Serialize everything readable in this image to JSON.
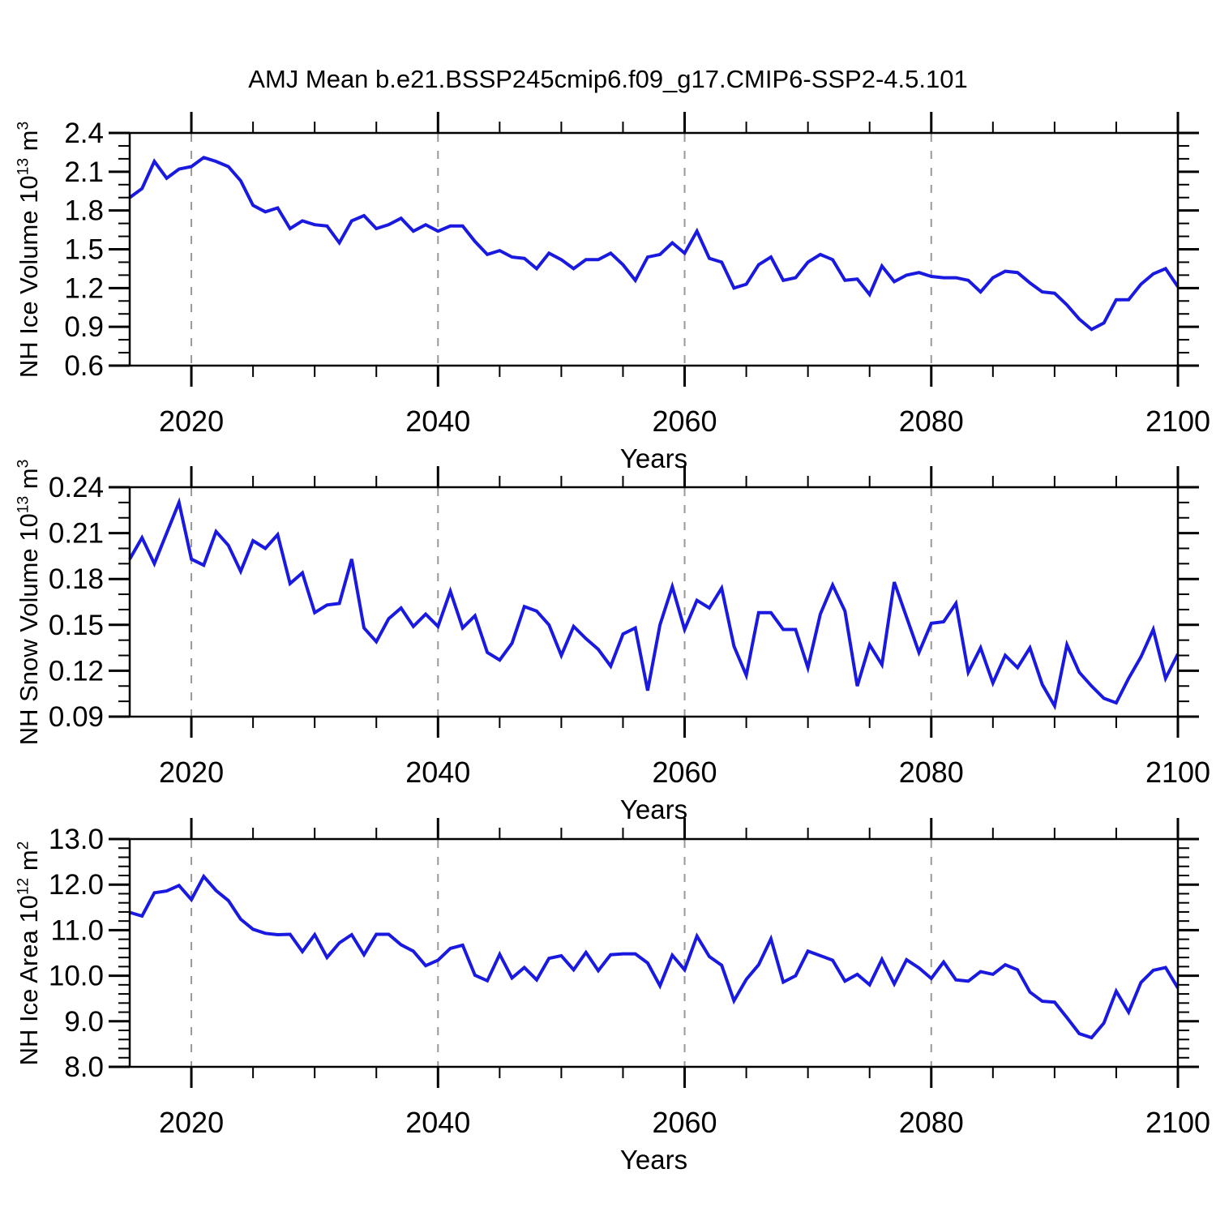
{
  "title": "AMJ Mean b.e21.BSSP245cmip6.f09_g17.CMIP6-SSP2-4.5.101",
  "x_axis": {
    "label": "Years",
    "start": 2015,
    "end": 2100,
    "tick_values": [
      2020,
      2040,
      2060,
      2080,
      2100
    ],
    "tick_labels": [
      "2020",
      "2040",
      "2060",
      "2080",
      "2100"
    ],
    "minor_step": 5,
    "gridline_values": [
      2020,
      2040,
      2060,
      2080
    ]
  },
  "style": {
    "line_color": "#1919e0",
    "grid_color": "#999999",
    "axis_color": "#000000"
  },
  "chart_data": [
    {
      "type": "line",
      "series_name": "nh-ice-volume",
      "ylabel_segments": [
        {
          "text": "NH Ice Volume 10"
        },
        {
          "text": "13",
          "sup": true
        },
        {
          "text": " m"
        },
        {
          "text": "3",
          "sup": true
        }
      ],
      "ylim": [
        0.6,
        2.4
      ],
      "ytick_values": [
        0.6,
        0.9,
        1.2,
        1.5,
        1.8,
        2.1,
        2.4
      ],
      "ytick_labels": [
        "0.6",
        "0.9",
        "1.2",
        "1.5",
        "1.8",
        "2.1",
        "2.4"
      ],
      "yminor_step": 0.1,
      "xlabel": "Years",
      "x_start": 2015,
      "x_step": 1,
      "values": [
        1.9,
        1.97,
        2.18,
        2.05,
        2.12,
        2.14,
        2.21,
        2.18,
        2.14,
        2.03,
        1.84,
        1.79,
        1.82,
        1.66,
        1.72,
        1.69,
        1.68,
        1.55,
        1.72,
        1.76,
        1.66,
        1.69,
        1.74,
        1.64,
        1.69,
        1.64,
        1.68,
        1.68,
        1.56,
        1.46,
        1.49,
        1.44,
        1.43,
        1.35,
        1.47,
        1.42,
        1.35,
        1.42,
        1.42,
        1.47,
        1.38,
        1.26,
        1.44,
        1.46,
        1.55,
        1.47,
        1.64,
        1.43,
        1.4,
        1.2,
        1.23,
        1.38,
        1.44,
        1.26,
        1.28,
        1.4,
        1.46,
        1.42,
        1.26,
        1.27,
        1.15,
        1.37,
        1.25,
        1.3,
        1.32,
        1.29,
        1.28,
        1.28,
        1.26,
        1.17,
        1.28,
        1.33,
        1.32,
        1.24,
        1.17,
        1.16,
        1.07,
        0.96,
        0.88,
        0.93,
        1.11,
        1.11,
        1.23,
        1.31,
        1.35,
        1.21
      ]
    },
    {
      "type": "line",
      "series_name": "nh-snow-volume",
      "ylabel_segments": [
        {
          "text": "NH Snow Volume 10"
        },
        {
          "text": "13",
          "sup": true
        },
        {
          "text": " m"
        },
        {
          "text": "3",
          "sup": true
        }
      ],
      "ylim": [
        0.09,
        0.24
      ],
      "ytick_values": [
        0.09,
        0.12,
        0.15,
        0.18,
        0.21,
        0.24
      ],
      "ytick_labels": [
        "0.09",
        "0.12",
        "0.15",
        "0.18",
        "0.21",
        "0.24"
      ],
      "yminor_step": 0.01,
      "xlabel": "Years",
      "x_start": 2015,
      "x_step": 1,
      "values": [
        0.193,
        0.207,
        0.19,
        0.21,
        0.23,
        0.193,
        0.189,
        0.211,
        0.202,
        0.185,
        0.205,
        0.2,
        0.209,
        0.177,
        0.184,
        0.158,
        0.163,
        0.164,
        0.193,
        0.148,
        0.139,
        0.154,
        0.161,
        0.149,
        0.157,
        0.149,
        0.172,
        0.148,
        0.156,
        0.132,
        0.127,
        0.138,
        0.162,
        0.159,
        0.15,
        0.13,
        0.149,
        0.141,
        0.134,
        0.123,
        0.144,
        0.148,
        0.107,
        0.15,
        0.175,
        0.147,
        0.166,
        0.161,
        0.174,
        0.136,
        0.117,
        0.158,
        0.158,
        0.147,
        0.147,
        0.122,
        0.157,
        0.176,
        0.159,
        0.11,
        0.137,
        0.124,
        0.178,
        0.155,
        0.132,
        0.151,
        0.152,
        0.164,
        0.119,
        0.135,
        0.112,
        0.13,
        0.122,
        0.135,
        0.111,
        0.097,
        0.137,
        0.119,
        0.11,
        0.102,
        0.099,
        0.115,
        0.129,
        0.147,
        0.115,
        0.131
      ]
    },
    {
      "type": "line",
      "series_name": "nh-ice-area",
      "ylabel_segments": [
        {
          "text": "NH Ice Area 10"
        },
        {
          "text": "12",
          "sup": true
        },
        {
          "text": " m"
        },
        {
          "text": "2",
          "sup": true
        }
      ],
      "ylim": [
        8.0,
        13.0
      ],
      "ytick_values": [
        8.0,
        9.0,
        10.0,
        11.0,
        12.0,
        13.0
      ],
      "ytick_labels": [
        "8.0",
        "9.0",
        "10.0",
        "11.0",
        "12.0",
        "13.0"
      ],
      "yminor_step": 0.2,
      "xlabel": "Years",
      "x_start": 2015,
      "x_step": 1,
      "values": [
        11.39,
        11.31,
        11.82,
        11.86,
        11.98,
        11.67,
        12.18,
        11.87,
        11.65,
        11.24,
        11.02,
        10.93,
        10.9,
        10.91,
        10.53,
        10.9,
        10.4,
        10.72,
        10.9,
        10.46,
        10.91,
        10.91,
        10.68,
        10.54,
        10.22,
        10.34,
        10.6,
        10.67,
        10.01,
        9.89,
        10.47,
        9.95,
        10.18,
        9.91,
        10.38,
        10.44,
        10.13,
        10.51,
        10.11,
        10.46,
        10.48,
        10.48,
        10.28,
        9.78,
        10.45,
        10.13,
        10.87,
        10.42,
        10.23,
        9.45,
        9.92,
        10.24,
        10.81,
        9.86,
        10.0,
        10.54,
        10.44,
        10.34,
        9.88,
        10.03,
        9.8,
        10.36,
        9.82,
        10.35,
        10.17,
        9.94,
        10.3,
        9.91,
        9.88,
        10.09,
        10.03,
        10.24,
        10.13,
        9.64,
        9.44,
        9.42,
        9.08,
        8.73,
        8.64,
        8.96,
        9.66,
        9.2,
        9.85,
        10.12,
        10.18,
        9.73
      ]
    }
  ]
}
